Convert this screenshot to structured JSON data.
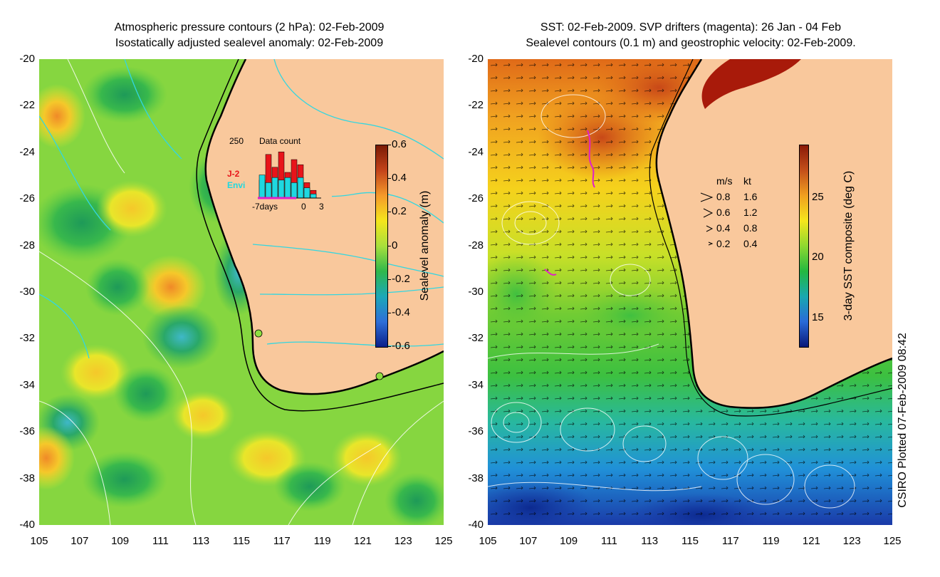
{
  "left_panel": {
    "title_line1": "Atmospheric pressure contours (2 hPa): 02-Feb-2009",
    "title_line2": "Isostatically adjusted sealevel anomaly: 02-Feb-2009",
    "y_ticks": [
      "-20",
      "-22",
      "-24",
      "-26",
      "-28",
      "-30",
      "-32",
      "-34",
      "-36",
      "-38",
      "-40"
    ],
    "x_ticks": [
      "105",
      "107",
      "109",
      "111",
      "113",
      "115",
      "117",
      "119",
      "121",
      "123",
      "125"
    ],
    "colorbar": {
      "label": "Sealevel anomaly (m)",
      "ticks": [
        "0.6",
        "0.4",
        "0.2",
        "0",
        "-0.2",
        "-0.4",
        "-0.6"
      ],
      "colors": [
        "#7a1a05",
        "#c4441a",
        "#f59a2a",
        "#f5e61c",
        "#a8e03c",
        "#2fb84c",
        "#1ca8b8",
        "#2e6fd8",
        "#0b1f8a"
      ]
    },
    "inset": {
      "title": "Data count",
      "y_label": "250",
      "legend_j2": "J-2",
      "legend_envi": "Envi",
      "x_left": "-7days",
      "x_mid": "0",
      "x_right": "3",
      "j2_color": "#e8141a",
      "envi_color": "#1fd8e0",
      "j2_values": [
        0.35,
        0.85,
        0.6,
        0.9,
        0.5,
        0.75,
        0.65,
        0.3,
        0.15
      ],
      "envi_values": [
        0.45,
        0.3,
        0.4,
        0.35,
        0.4,
        0.3,
        0.4,
        0.2,
        0.08
      ]
    }
  },
  "right_panel": {
    "title_line1": "SST: 02-Feb-2009. SVP drifters (magenta): 26 Jan - 04 Feb",
    "title_line2": "Sealevel contours (0.1 m) and geostrophic velocity: 02-Feb-2009.",
    "y_ticks": [
      "-20",
      "-22",
      "-24",
      "-26",
      "-28",
      "-30",
      "-32",
      "-34",
      "-36",
      "-38",
      "-40"
    ],
    "x_ticks": [
      "105",
      "107",
      "109",
      "111",
      "113",
      "115",
      "117",
      "119",
      "121",
      "123",
      "125"
    ],
    "colorbar": {
      "label": "3-day SST composite (deg C)",
      "ticks": [
        "25",
        "20",
        "15"
      ],
      "colors": [
        "#8a1a08",
        "#c4501a",
        "#f0a020",
        "#f5e61c",
        "#8ed830",
        "#22b840",
        "#18a8b0",
        "#2a6ad8",
        "#0a1878"
      ]
    },
    "velocity_legend": {
      "header_ms": "m/s",
      "header_kt": "kt",
      "rows": [
        {
          "ms": "0.8",
          "kt": "1.6"
        },
        {
          "ms": "0.6",
          "kt": "1.2"
        },
        {
          "ms": "0.4",
          "kt": "0.8"
        },
        {
          "ms": "0.2",
          "kt": "0.4"
        }
      ]
    }
  },
  "footer": {
    "plotted_label": "CSIRO Plotted 07-Feb-2009 08:42"
  },
  "colors": {
    "land": "#f9c89c",
    "contour_cyan": "#33d6e0",
    "drifter_magenta": "#e020c8"
  }
}
